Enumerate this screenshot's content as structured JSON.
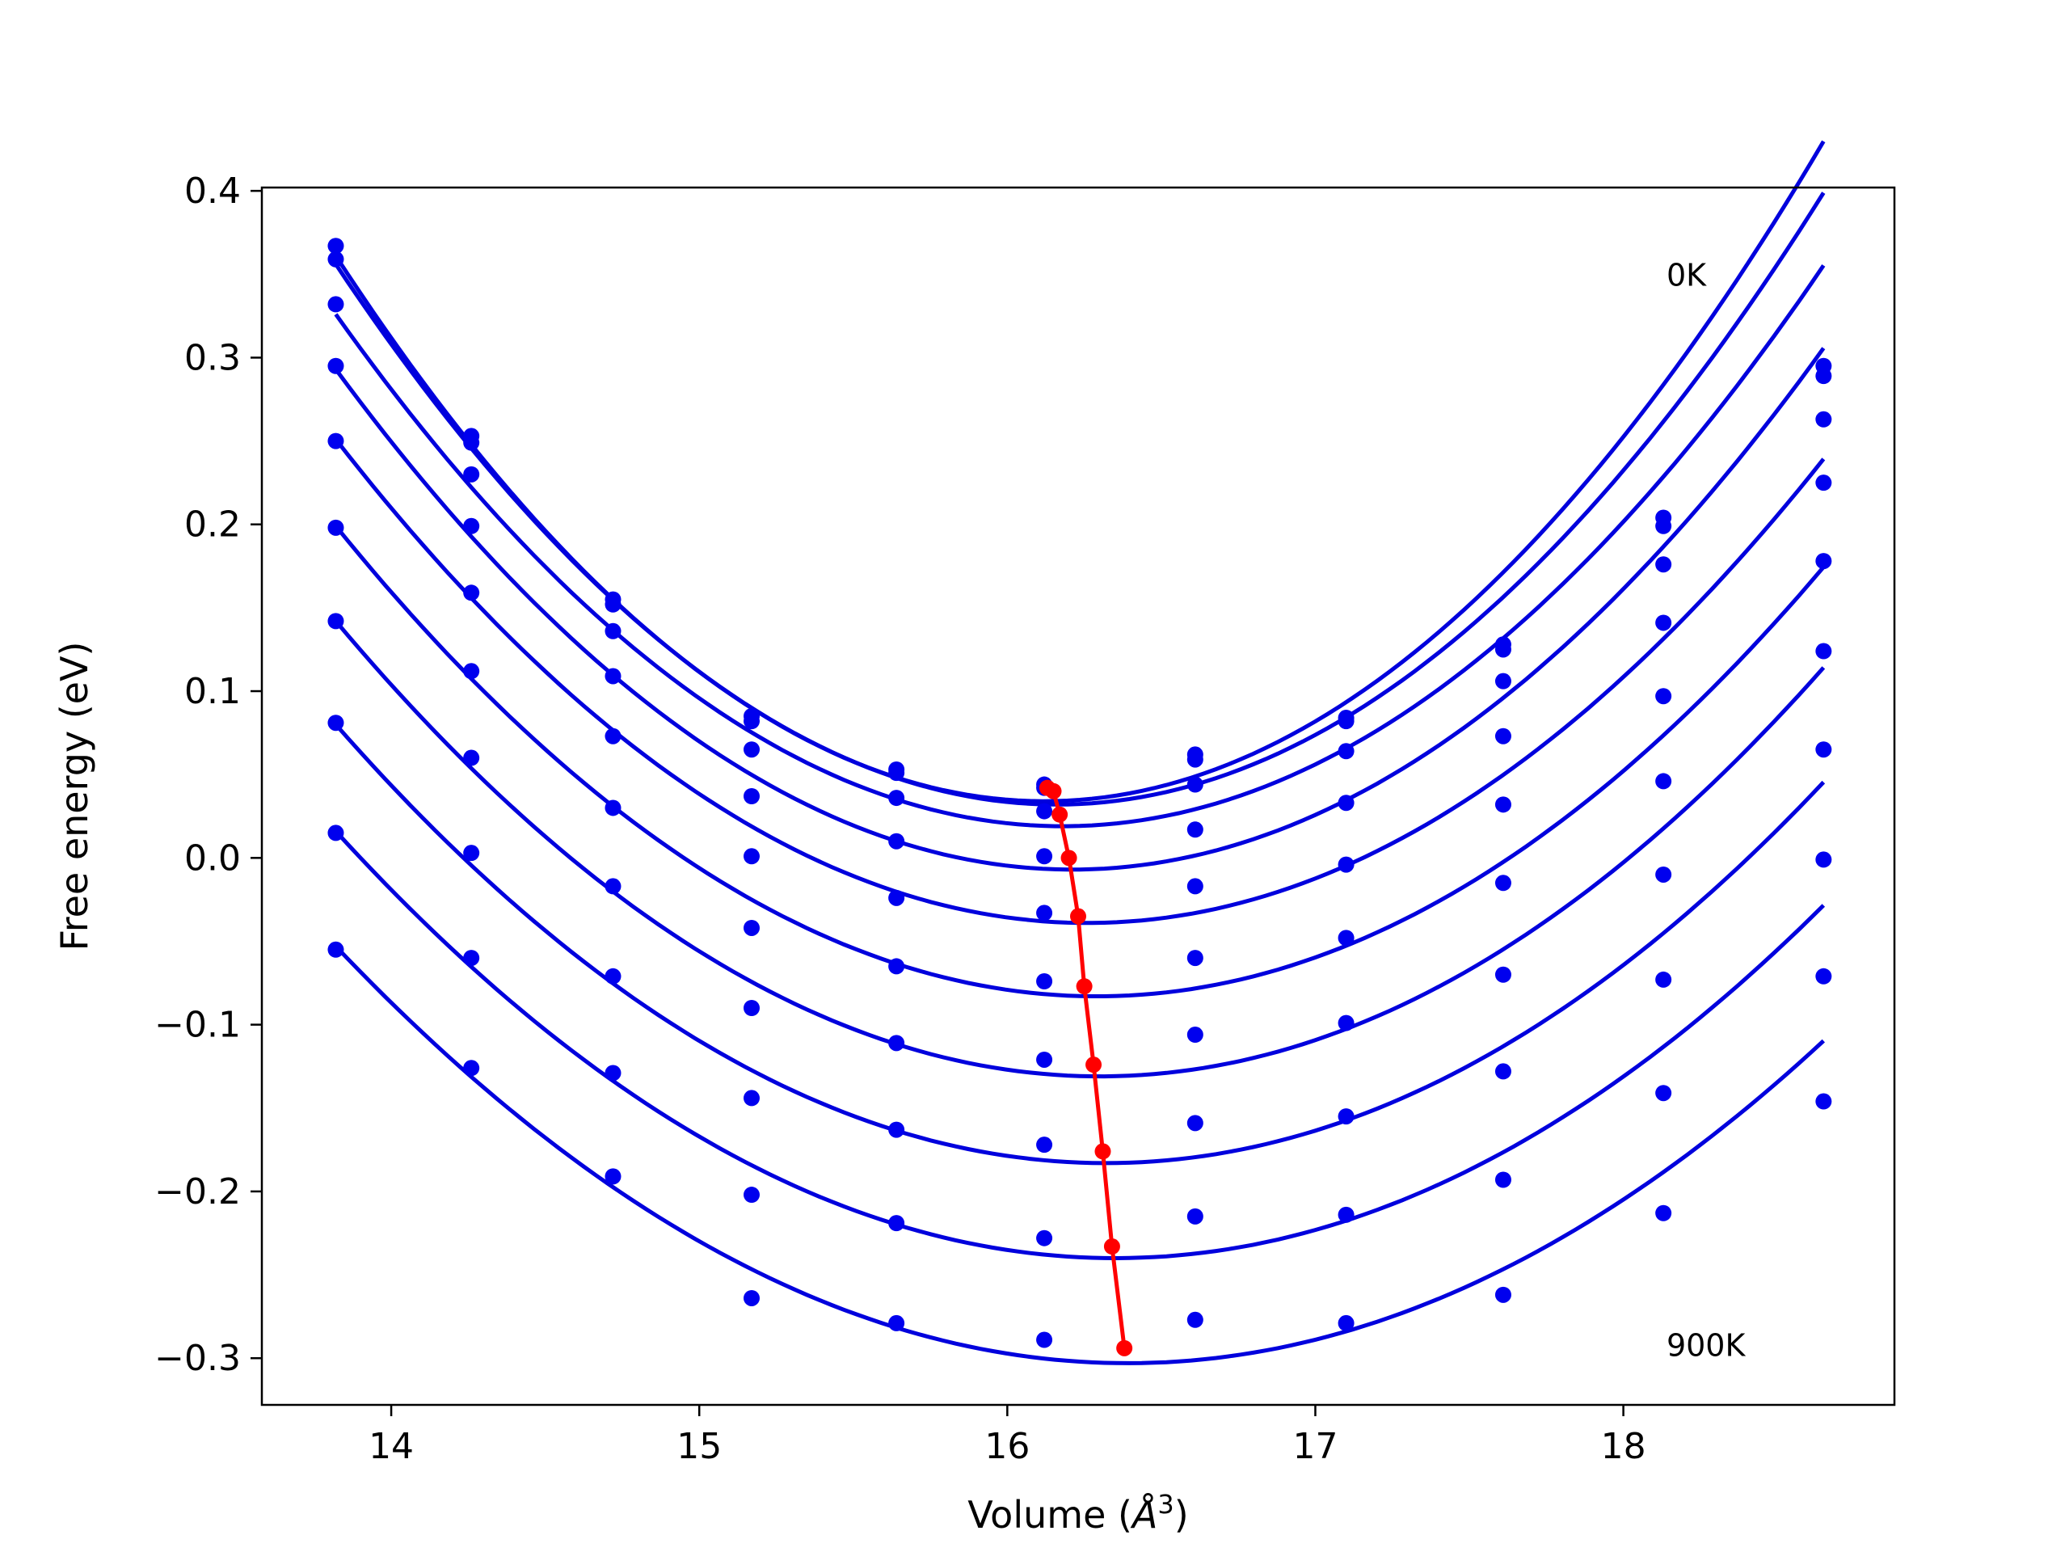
{
  "chart_data": {
    "type": "scatter",
    "title": "",
    "xlabel": "Volume (",
    "xlabel_symbol": "Å",
    "xlabel_exponent": "3",
    "xlabel_close": ")",
    "ylabel": "Free energy (eV)",
    "xlim": [
      13.58,
      18.88
    ],
    "ylim": [
      -0.328,
      0.402
    ],
    "xticks": [
      14,
      15,
      16,
      17,
      18
    ],
    "xtick_labels": [
      "14",
      "15",
      "16",
      "17",
      "18"
    ],
    "yticks": [
      -0.3,
      -0.2,
      -0.1,
      0.0,
      0.1,
      0.2,
      0.3,
      0.4
    ],
    "ytick_labels": [
      "−0.3",
      "−0.2",
      "−0.1",
      "0.0",
      "0.1",
      "0.2",
      "0.3",
      "0.4"
    ],
    "grid": false,
    "colors": {
      "points": "#0000ee",
      "fits": "#0000dd",
      "minima": "#ff0000"
    },
    "annotations": [
      {
        "text": "0K",
        "x": 18.14,
        "y": 0.35
      },
      {
        "text": "900K",
        "x": 18.14,
        "y": -0.292
      }
    ],
    "x": [
      13.82,
      14.26,
      14.72,
      15.17,
      15.64,
      16.12,
      16.61,
      17.1,
      17.61,
      18.13,
      18.65
    ],
    "series": [
      {
        "values": [
          0.367,
          0.253,
          0.155,
          0.085,
          0.053,
          0.044,
          0.062,
          0.084,
          0.128,
          0.204,
          0.295
        ],
        "fit": [
          0.361,
          0.034,
          16.12
        ],
        "min_x": 16.13,
        "min_y": 0.042
      },
      {
        "values": [
          0.359,
          0.249,
          0.152,
          0.082,
          0.051,
          0.042,
          0.059,
          0.082,
          0.125,
          0.199,
          0.289
        ],
        "fit": [
          0.356,
          0.032,
          16.16
        ],
        "min_x": 16.15,
        "min_y": 0.04
      },
      {
        "values": [
          0.332,
          0.23,
          0.136,
          0.065,
          0.036,
          0.028,
          0.044,
          0.064,
          0.106,
          0.176,
          0.263
        ],
        "fit": [
          0.326,
          0.019,
          16.18
        ],
        "min_x": 16.17,
        "min_y": 0.026
      },
      {
        "values": [
          0.295,
          0.199,
          0.109,
          0.037,
          0.01,
          0.001,
          0.017,
          0.033,
          0.073,
          0.141,
          0.225
        ],
        "fit": [
          0.293,
          -0.007,
          16.21
        ],
        "min_x": 16.2,
        "min_y": 0.0
      },
      {
        "values": [
          0.25,
          0.159,
          0.073,
          0.001,
          -0.024,
          -0.033,
          -0.017,
          -0.004,
          0.032,
          0.097,
          0.178
        ],
        "fit": [
          0.251,
          -0.039,
          16.26
        ],
        "min_x": 16.23,
        "min_y": -0.035
      },
      {
        "values": [
          0.198,
          0.112,
          0.03,
          -0.042,
          -0.065,
          -0.074,
          -0.06,
          -0.048,
          -0.015,
          0.046,
          0.124
        ],
        "fit": [
          0.199,
          -0.083,
          16.29
        ],
        "min_x": 16.25,
        "min_y": -0.077
      },
      {
        "values": [
          0.142,
          0.06,
          -0.017,
          -0.09,
          -0.111,
          -0.121,
          -0.106,
          -0.099,
          -0.07,
          -0.01,
          0.065
        ],
        "fit": [
          0.142,
          -0.131,
          16.3
        ],
        "min_x": 16.28,
        "min_y": -0.124
      },
      {
        "values": [
          0.081,
          0.003,
          -0.071,
          -0.144,
          -0.163,
          -0.172,
          -0.159,
          -0.155,
          -0.128,
          -0.073,
          -0.001
        ],
        "fit": [
          0.08,
          -0.183,
          16.32
        ],
        "min_x": 16.31,
        "min_y": -0.176
      },
      {
        "values": [
          0.015,
          -0.06,
          -0.129,
          -0.202,
          -0.219,
          -0.228,
          -0.215,
          -0.214,
          -0.193,
          -0.141,
          -0.071
        ],
        "fit": [
          0.016,
          -0.24,
          16.35
        ],
        "min_x": 16.34,
        "min_y": -0.233
      },
      {
        "values": [
          -0.055,
          -0.126,
          -0.191,
          -0.264,
          -0.279,
          -0.289,
          -0.277,
          -0.279,
          -0.262,
          -0.213,
          -0.146
        ],
        "fit": [
          -0.053,
          -0.303,
          16.39
        ],
        "min_x": 16.38,
        "min_y": -0.294
      }
    ]
  }
}
